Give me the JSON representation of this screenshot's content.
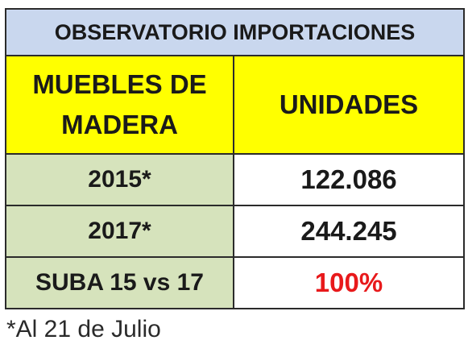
{
  "table": {
    "title": "OBSERVATORIO IMPORTACIONES",
    "header": {
      "category_line1": "MUEBLES DE",
      "category_line2": "MADERA",
      "units": "UNIDADES"
    },
    "rows": [
      {
        "label": "2015*",
        "value": "122.086"
      },
      {
        "label": "2017*",
        "value": "244.245"
      },
      {
        "label": "SUBA 15 vs 17",
        "value": "100%"
      }
    ]
  },
  "footnote": "*Al 21 de Julio",
  "colors": {
    "title_bg": "#c9d7ee",
    "header_bg": "#ffff00",
    "label_bg": "#d6e3bc",
    "highlight_text": "#e8191b"
  }
}
